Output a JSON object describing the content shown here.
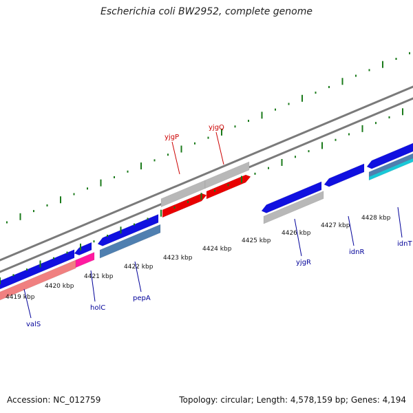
{
  "title": "Escherichia coli BW2952, complete genome",
  "footer": {
    "accession": "Accession: NC_012759",
    "summary": "Topology: circular; Length: 4,578,159 bp; Genes: 4,194"
  },
  "colors": {
    "forward_gene": "#e80000",
    "reverse_gene": "#1010e0",
    "pseudo_gene": "#b8b8b8",
    "rna_gene": "#ff1aa0",
    "steel_gene": "#4f7fb0",
    "cyan_gene": "#19c8d8",
    "pink_gene": "#f08080",
    "tick_green": "#1a7a1a",
    "backbone": "#7a7a7a",
    "forward_label": "#cc0000",
    "reverse_label": "#000099"
  },
  "scale_labels": [
    "4419 kbp",
    "4420 kbp",
    "4421 kbp",
    "4422 kbp",
    "4423 kbp",
    "4424 kbp",
    "4425 kbp",
    "4426 kbp",
    "4427 kbp",
    "4428 kbp"
  ],
  "gene_labels": {
    "forward": [
      "yjgP",
      "yjgQ"
    ],
    "reverse": [
      "valS",
      "holC",
      "pepA",
      "yjgR",
      "idnR",
      "idnT"
    ]
  }
}
